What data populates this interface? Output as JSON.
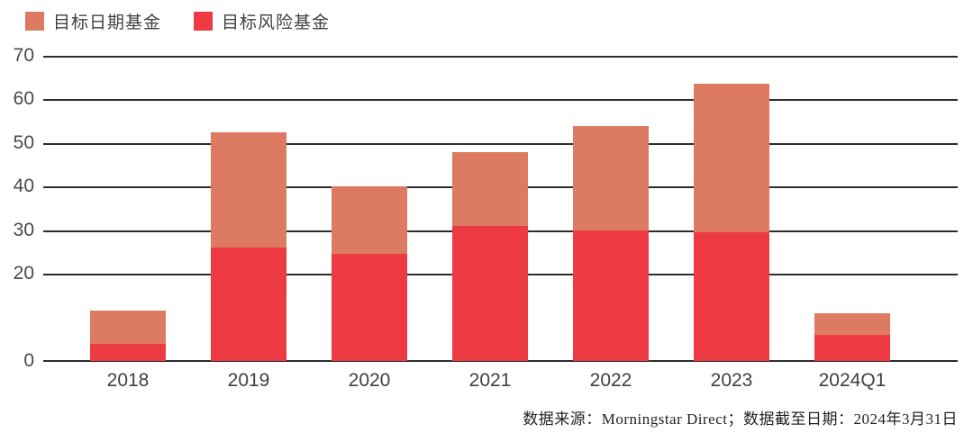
{
  "legend": {
    "items": [
      {
        "label": "目标日期基金",
        "color": "#DD7A62"
      },
      {
        "label": "目标风险基金",
        "color": "#EE3A43"
      }
    ]
  },
  "chart_data": {
    "type": "bar",
    "stacked": true,
    "title": "",
    "xlabel": "",
    "ylabel": "",
    "categories": [
      "2018",
      "2019",
      "2020",
      "2021",
      "2022",
      "2023",
      "2024Q1"
    ],
    "series": [
      {
        "name": "目标风险基金",
        "color": "#EE3A43",
        "values": [
          4,
          26,
          24.5,
          31,
          30,
          29.5,
          6
        ]
      },
      {
        "name": "目标日期基金",
        "color": "#DD7A62",
        "values": [
          7.5,
          26.5,
          15.5,
          17,
          24,
          34,
          5
        ]
      }
    ],
    "totals": [
      11.5,
      52.5,
      40,
      48,
      54,
      63.5,
      11
    ],
    "ylim": [
      0,
      70
    ],
    "yticks": [
      0,
      20,
      30,
      40,
      50,
      60,
      70
    ],
    "grid": "horizontal",
    "legend_position": "top-left"
  },
  "footer": {
    "text": "数据来源：Morningstar Direct；数据截至日期：2024年3月31日"
  }
}
